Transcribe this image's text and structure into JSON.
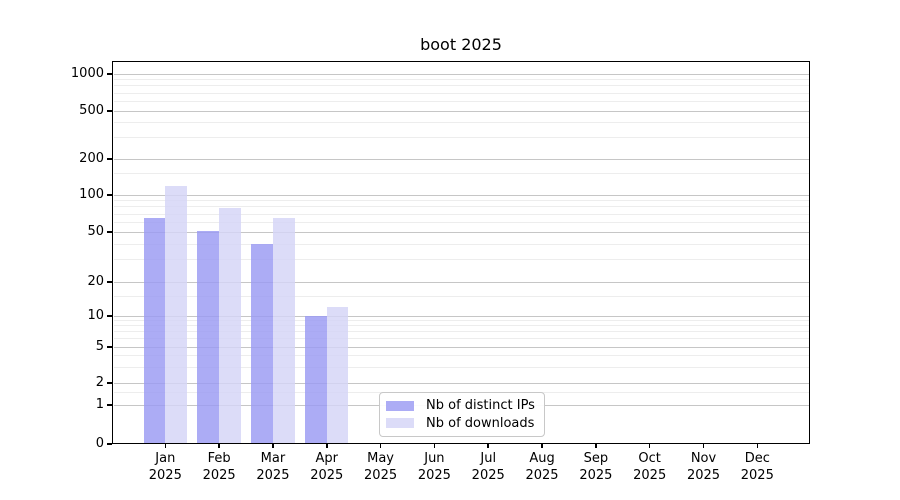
{
  "chart_data": {
    "type": "bar",
    "title": "boot 2025",
    "categories": [
      "Jan 2025",
      "Feb 2025",
      "Mar 2025",
      "Apr 2025",
      "May 2025",
      "Jun 2025",
      "Jul 2025",
      "Aug 2025",
      "Sep 2025",
      "Oct 2025",
      "Nov 2025",
      "Dec 2025"
    ],
    "series": [
      {
        "name": "Nb of distinct IPs",
        "color": "#9a9af3",
        "values": [
          65,
          51,
          40,
          10,
          0,
          0,
          0,
          0,
          0,
          0,
          0,
          0
        ]
      },
      {
        "name": "Nb of downloads",
        "color": "#d4d4f7",
        "values": [
          118,
          79,
          65,
          12,
          0,
          0,
          0,
          0,
          0,
          0,
          0,
          0
        ]
      }
    ],
    "yticks": [
      0,
      1,
      2,
      5,
      10,
      20,
      50,
      100,
      200,
      500,
      1000
    ],
    "yscale": "symlog",
    "ylim": [
      0,
      1400
    ],
    "xlabel": "",
    "ylabel": "",
    "grid": true,
    "legend": {
      "position": "lower center",
      "entries": [
        "Nb of distinct IPs",
        "Nb of downloads"
      ]
    }
  }
}
